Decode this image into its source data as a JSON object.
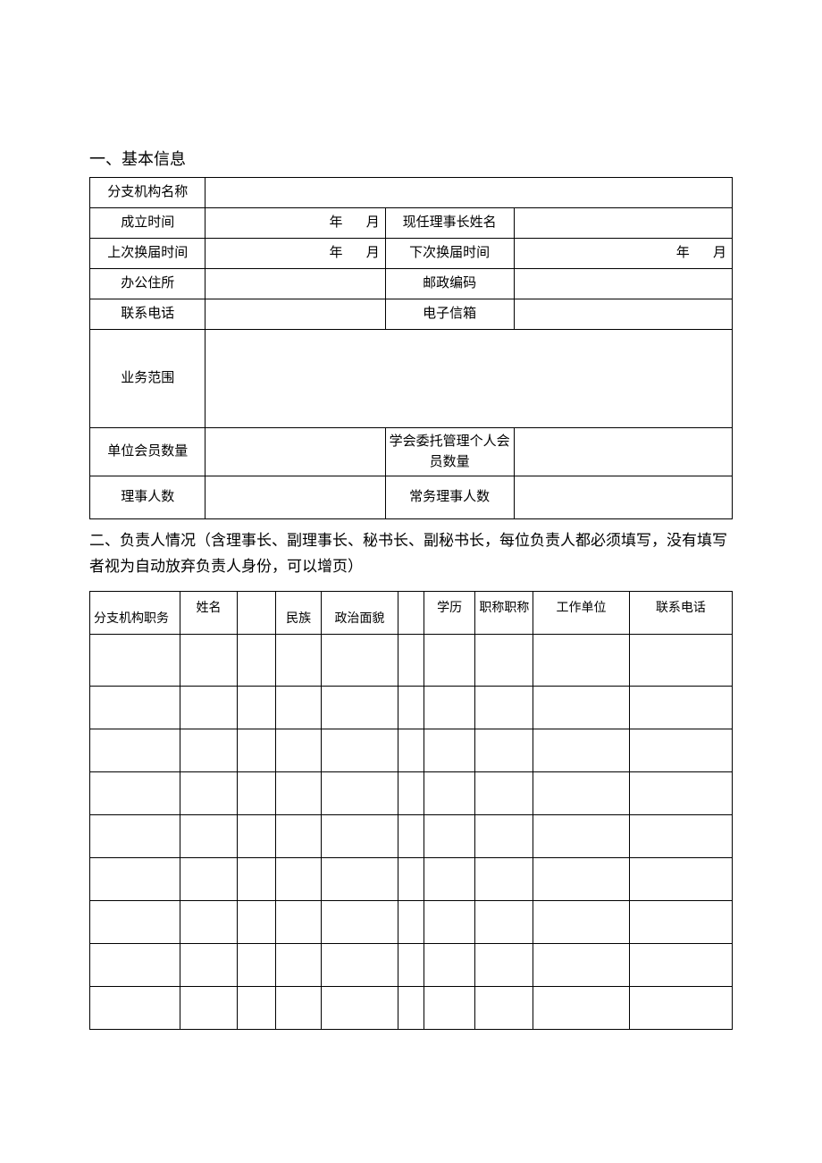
{
  "section1": {
    "heading": "一、基本信息",
    "labels": {
      "branch_name": "分支机构名称",
      "established": "成立时间",
      "chairman": "现任理事长姓名",
      "last_election": "上次换届时间",
      "next_election": "下次换届时间",
      "office_addr": "办公住所",
      "postal": "邮政编码",
      "phone": "联系电话",
      "email": "电子信箱",
      "scope": "业务范围",
      "unit_members": "单位会员数量",
      "delegated_members": "学会委托管理个人会员数量",
      "directors": "理事人数",
      "standing_directors": "常务理事人数"
    },
    "date_unit": {
      "year": "年",
      "month": "月"
    }
  },
  "section2": {
    "heading": "二、负责人情况（含理事长、副理事长、秘书长、副秘书长，每位负责人都必须填写，没有填写者视为自动放弃负责人身份，可以增页）",
    "columns": {
      "position": "分支机构职务",
      "name": "姓名",
      "blank": "",
      "ethnicity": "民族",
      "politics": "政治面貌",
      "blank2": "",
      "education": "学历",
      "title": "职称职称",
      "workplace": "工作单位",
      "contact": "联系电话"
    },
    "row_count": 9
  },
  "style": {
    "border_color": "#000000",
    "text_color": "#000000",
    "background": "#ffffff",
    "font_family": "SimSun",
    "body_fontsize": 16,
    "heading_fontsize": 18,
    "table_fontsize": 15
  }
}
